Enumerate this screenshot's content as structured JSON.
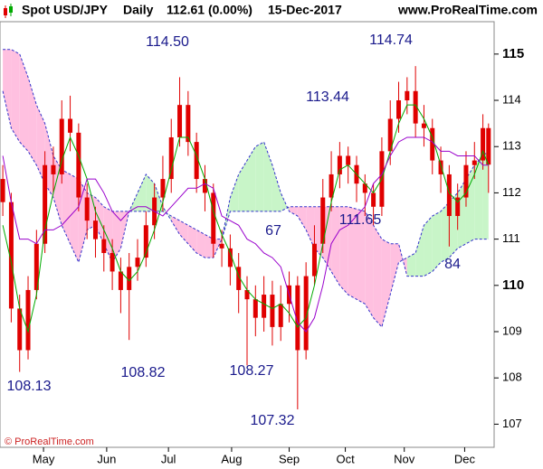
{
  "chart_data": {
    "type": "candlestick",
    "title": "Spot USD/JPY",
    "period": "Daily",
    "last": "112.61 (0.00%)",
    "date": "15-Dec-2017",
    "site": "www.ProRealTime.com",
    "footer": "© ProRealTime.com",
    "x": [
      1,
      4,
      7,
      10,
      13,
      16,
      19,
      22,
      25,
      28,
      31,
      34,
      37,
      40,
      43,
      46,
      49,
      52,
      55,
      58,
      61,
      64,
      67,
      70,
      73,
      76,
      79,
      82,
      85,
      88,
      91,
      94,
      97,
      100,
      103,
      106,
      109,
      112,
      115,
      118,
      121,
      124,
      127,
      130,
      133,
      136,
      139,
      142,
      145,
      148,
      151,
      154,
      157,
      160,
      163,
      166,
      169,
      172,
      174
    ],
    "open": [
      112.3,
      111.8,
      109.5,
      108.6,
      109.9,
      110.9,
      112.6,
      112.4,
      113.6,
      113.3,
      111.9,
      111.4,
      111.0,
      110.7,
      110.3,
      109.9,
      110.4,
      110.6,
      111.3,
      111.9,
      112.3,
      113.2,
      113.9,
      113.1,
      112.3,
      112.0,
      110.9,
      110.8,
      110.4,
      109.9,
      109.7,
      109.3,
      109.8,
      109.1,
      109.6,
      110.0,
      108.6,
      110.2,
      110.9,
      111.9,
      112.4,
      112.8,
      112.6,
      112.2,
      112.0,
      111.7,
      112.9,
      113.6,
      114.0,
      114.2,
      113.5,
      113.4,
      112.7,
      112.4,
      111.5,
      111.9,
      112.6,
      112.7,
      113.4
    ],
    "high": [
      112.6,
      112.0,
      109.8,
      110.2,
      111.2,
      112.9,
      113.0,
      114.0,
      114.1,
      113.5,
      112.2,
      111.7,
      111.3,
      111.0,
      110.6,
      110.7,
      111.0,
      111.6,
      112.2,
      112.8,
      113.6,
      114.5,
      114.2,
      113.3,
      112.6,
      112.2,
      111.2,
      111.1,
      110.7,
      110.2,
      110.0,
      110.2,
      110.1,
      110.0,
      110.3,
      110.2,
      110.5,
      111.3,
      112.3,
      112.9,
      113.1,
      113.0,
      112.8,
      112.4,
      112.2,
      113.2,
      114.0,
      114.4,
      114.5,
      114.74,
      113.9,
      113.6,
      113.0,
      112.6,
      112.2,
      112.9,
      113.1,
      113.7,
      113.5
    ],
    "low": [
      111.5,
      109.2,
      108.13,
      108.4,
      109.7,
      110.7,
      112.0,
      112.2,
      112.9,
      111.6,
      111.0,
      110.6,
      110.3,
      109.9,
      109.4,
      108.82,
      110.1,
      110.4,
      111.0,
      111.6,
      112.0,
      113.0,
      112.8,
      112.0,
      111.6,
      110.6,
      110.4,
      110.0,
      109.4,
      108.27,
      108.9,
      109.0,
      108.7,
      108.8,
      109.2,
      107.32,
      108.4,
      110.0,
      110.7,
      111.6,
      112.1,
      112.2,
      111.8,
      111.5,
      111.3,
      111.5,
      112.6,
      113.3,
      113.7,
      113.2,
      113.0,
      112.4,
      112.0,
      110.84,
      111.2,
      111.7,
      112.3,
      112.5,
      112.0
    ],
    "close": [
      111.8,
      109.5,
      108.6,
      109.9,
      110.9,
      112.6,
      112.4,
      113.6,
      113.3,
      111.9,
      111.4,
      111.0,
      110.7,
      110.3,
      109.9,
      110.4,
      110.6,
      111.3,
      111.9,
      112.3,
      113.2,
      113.9,
      113.1,
      112.3,
      112.0,
      110.9,
      110.8,
      110.4,
      109.9,
      109.7,
      109.3,
      109.8,
      109.1,
      109.6,
      110.0,
      108.6,
      110.2,
      110.9,
      111.9,
      112.4,
      112.8,
      112.6,
      112.2,
      112.0,
      111.7,
      112.9,
      113.6,
      114.0,
      114.2,
      113.5,
      113.4,
      112.7,
      112.4,
      111.5,
      111.9,
      112.6,
      112.7,
      113.4,
      112.61
    ],
    "candle_color": "#e00000",
    "indicators": [
      {
        "color": "#00aa00",
        "values": [
          111.3,
          110.5,
          109.5,
          109.0,
          109.8,
          111.2,
          112.0,
          112.7,
          113.2,
          112.8,
          112.3,
          111.6,
          111.2,
          110.8,
          110.3,
          110.1,
          110.3,
          110.7,
          111.2,
          111.8,
          112.5,
          113.2,
          113.2,
          112.8,
          112.3,
          111.6,
          111.1,
          110.7,
          110.2,
          109.9,
          109.7,
          109.6,
          109.5,
          109.6,
          109.4,
          109.1,
          109.3,
          110.0,
          110.9,
          111.8,
          112.5,
          112.6,
          112.4,
          112.2,
          112.0,
          112.3,
          112.9,
          113.5,
          113.9,
          113.9,
          113.6,
          113.2,
          112.6,
          112.0,
          111.8,
          112.0,
          112.4,
          112.9,
          112.6
        ]
      },
      {
        "color": "#9900cc",
        "values": [
          112.8,
          111.8,
          111.0,
          111.0,
          110.9,
          111.2,
          111.2,
          111.3,
          111.5,
          111.7,
          112.3,
          112.3,
          112.0,
          111.6,
          111.4,
          111.6,
          111.7,
          111.7,
          111.6,
          111.5,
          111.7,
          111.9,
          112.1,
          112.1,
          112.2,
          112.1,
          111.5,
          111.4,
          111.3,
          111.0,
          110.9,
          110.7,
          110.6,
          110.4,
          109.8,
          109.2,
          109.0,
          109.3,
          110.0,
          110.9,
          111.2,
          111.3,
          111.5,
          111.7,
          112.2,
          112.4,
          112.8,
          113.1,
          113.2,
          113.2,
          113.2,
          113.1,
          112.9,
          112.9,
          112.8,
          112.8,
          112.8,
          112.6,
          112.6
        ]
      }
    ],
    "cloud": {
      "line_color": "#3333cc",
      "bull_color": "#c8f5c8",
      "bear_color": "#ffc0e0",
      "span_a": [
        114.2,
        113.4,
        113.1,
        112.9,
        112.6,
        112.2,
        111.9,
        111.3,
        110.9,
        110.5,
        111.2,
        111.3,
        110.9,
        110.5,
        110.8,
        111.6,
        112.0,
        112.4,
        112.2,
        111.7,
        111.4,
        111.1,
        110.9,
        110.7,
        110.6,
        110.6,
        111.0,
        111.9,
        112.4,
        112.7,
        113.0,
        113.1,
        112.6,
        112.0,
        111.6,
        111.5,
        111.2,
        110.8,
        110.6,
        110.3,
        110.0,
        109.8,
        109.7,
        109.6,
        109.3,
        109.1,
        109.8,
        110.5,
        110.6,
        110.7,
        111.3,
        111.5,
        111.6,
        111.8,
        112.0,
        112.3,
        112.6,
        112.8,
        112.9
      ],
      "span_b": [
        115.1,
        115.1,
        115.0,
        114.5,
        113.9,
        113.5,
        112.8,
        112.5,
        112.4,
        112.3,
        112.0,
        111.9,
        111.7,
        111.6,
        111.6,
        111.6,
        111.6,
        111.6,
        111.6,
        111.6,
        111.5,
        111.4,
        111.3,
        111.2,
        111.1,
        111.0,
        111.0,
        111.6,
        111.6,
        111.6,
        111.6,
        111.6,
        111.6,
        111.6,
        111.7,
        111.7,
        111.7,
        111.7,
        111.7,
        111.7,
        111.7,
        111.7,
        111.65,
        111.6,
        111.3,
        111.0,
        110.9,
        110.9,
        110.2,
        110.2,
        110.2,
        110.3,
        110.5,
        110.6,
        110.8,
        110.9,
        111.0,
        111.0,
        111.0
      ]
    },
    "annotations": [
      "114.50",
      "114.74",
      "113.44",
      "111.65",
      "67",
      "84",
      "108.13",
      "108.82",
      "108.27",
      "107.32"
    ],
    "xlim": [
      0,
      176
    ],
    "xticks": [
      {
        "value": 15.5,
        "label": "May"
      },
      {
        "value": 38,
        "label": "Jun"
      },
      {
        "value": 60,
        "label": "Jul"
      },
      {
        "value": 82.5,
        "label": "Aug"
      },
      {
        "value": 103,
        "label": "Sep"
      },
      {
        "value": 123,
        "label": "Oct"
      },
      {
        "value": 144,
        "label": "Nov"
      },
      {
        "value": 165.5,
        "label": "Dec"
      }
    ],
    "ylim": [
      106.5,
      115.7
    ],
    "yticks": [
      107,
      108,
      109,
      110,
      111,
      112,
      113,
      114,
      115
    ]
  }
}
